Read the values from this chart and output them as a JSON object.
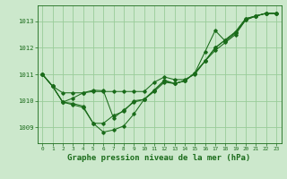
{
  "bg_color": "#cce8cc",
  "line_color": "#1a6b1a",
  "grid_color": "#99cc99",
  "xlabel": "Graphe pression niveau de la mer (hPa)",
  "xlabel_fontsize": 6.5,
  "ylabel_ticks": [
    1009,
    1010,
    1011,
    1012,
    1013
  ],
  "xlim": [
    -0.5,
    23.5
  ],
  "ylim": [
    1008.4,
    1013.6
  ],
  "xticks": [
    0,
    1,
    2,
    3,
    4,
    5,
    6,
    7,
    8,
    9,
    10,
    11,
    12,
    13,
    14,
    15,
    16,
    17,
    18,
    19,
    20,
    21,
    22,
    23
  ],
  "line1_x": [
    0,
    1,
    2,
    3,
    4,
    5,
    6,
    7,
    8,
    9,
    10,
    11,
    12,
    13,
    14,
    15,
    16,
    17,
    18,
    19,
    20,
    21,
    22,
    23
  ],
  "line1_y": [
    1011.0,
    1010.55,
    1010.3,
    1010.3,
    1010.3,
    1010.35,
    1010.35,
    1010.35,
    1010.35,
    1010.35,
    1010.35,
    1010.7,
    1010.9,
    1010.8,
    1010.8,
    1011.0,
    1011.5,
    1011.9,
    1012.2,
    1012.5,
    1013.05,
    1013.2,
    1013.3,
    1013.3
  ],
  "line2_x": [
    0,
    1,
    2,
    3,
    4,
    5,
    6,
    7,
    8,
    9,
    10,
    11,
    12,
    13,
    14,
    15,
    16,
    17,
    18,
    19,
    20,
    21,
    22,
    23
  ],
  "line2_y": [
    1011.0,
    1010.55,
    1009.95,
    1009.85,
    1009.75,
    1009.15,
    1008.82,
    1008.9,
    1009.05,
    1009.5,
    1010.05,
    1010.4,
    1010.75,
    1010.65,
    1010.75,
    1011.05,
    1011.85,
    1012.65,
    1012.25,
    1012.55,
    1013.05,
    1013.2,
    1013.3,
    1013.3
  ],
  "line3_x": [
    0,
    1,
    2,
    3,
    4,
    5,
    6,
    7,
    8,
    9,
    10,
    11,
    12,
    13,
    14,
    15,
    16,
    17,
    18,
    19,
    20,
    21,
    22,
    23
  ],
  "line3_y": [
    1011.0,
    1010.55,
    1009.95,
    1009.9,
    1009.8,
    1009.15,
    1009.15,
    1009.45,
    1009.6,
    1010.0,
    1010.05,
    1010.35,
    1010.7,
    1010.65,
    1010.75,
    1011.05,
    1011.5,
    1012.0,
    1012.3,
    1012.6,
    1013.1,
    1013.2,
    1013.3,
    1013.3
  ],
  "line4_x": [
    0,
    1,
    2,
    3,
    4,
    5,
    6,
    7,
    8,
    9,
    10,
    11,
    12,
    13,
    14,
    15,
    16,
    17,
    18,
    19,
    20,
    21,
    22,
    23
  ],
  "line4_y": [
    1011.0,
    1010.55,
    1009.95,
    1010.1,
    1010.3,
    1010.4,
    1010.38,
    1009.35,
    1009.65,
    1009.95,
    1010.05,
    1010.4,
    1010.78,
    1010.65,
    1010.75,
    1011.05,
    1011.5,
    1012.0,
    1012.3,
    1012.6,
    1013.1,
    1013.2,
    1013.3,
    1013.3
  ]
}
